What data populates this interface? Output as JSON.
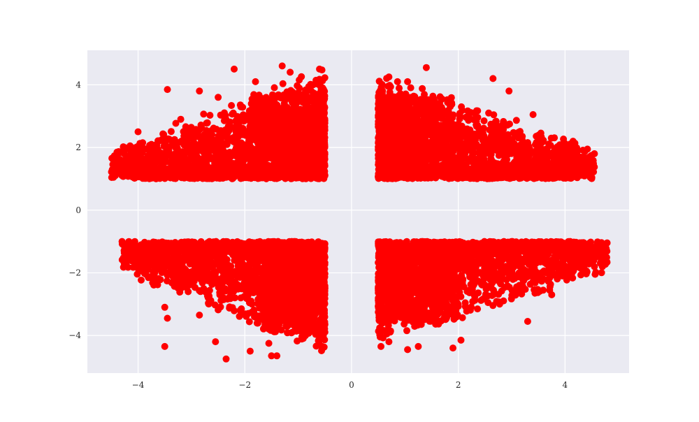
{
  "chart_data": {
    "type": "scatter",
    "title": "",
    "xlabel": "",
    "ylabel": "",
    "xlim": [
      -4.95,
      5.2
    ],
    "ylim": [
      -5.2,
      5.1
    ],
    "x_ticks": [
      -4,
      -2,
      0,
      2,
      4
    ],
    "y_ticks": [
      -4,
      -2,
      0,
      2,
      4
    ],
    "x_tick_labels": [
      "−4",
      "−2",
      "0",
      "2",
      "4"
    ],
    "y_tick_labels": [
      "−4",
      "−2",
      "0",
      "2",
      "4"
    ],
    "grid": true,
    "background_color": "#eaeaf2",
    "grid_color": "#ffffff",
    "point_color": "#ff0000",
    "quadrants": [
      {
        "name": "upper-left",
        "x_range": [
          -4.5,
          -0.5
        ],
        "y_range": [
          1.0,
          4.6
        ],
        "outer_edge": "left"
      },
      {
        "name": "upper-right",
        "x_range": [
          0.5,
          4.55
        ],
        "y_range": [
          1.0,
          4.5
        ],
        "outer_edge": "right"
      },
      {
        "name": "lower-left",
        "x_range": [
          -4.3,
          -0.5
        ],
        "y_range": [
          -4.75,
          -1.0
        ],
        "outer_edge": "left"
      },
      {
        "name": "lower-right",
        "x_range": [
          0.5,
          4.8
        ],
        "y_range": [
          -4.4,
          -1.0
        ],
        "outer_edge": "right"
      }
    ],
    "outliers": [
      [
        -4.46,
        1.05
      ],
      [
        -4.3,
        1.1
      ],
      [
        -4.15,
        2.05
      ],
      [
        -4.0,
        2.5
      ],
      [
        -3.9,
        1.6
      ],
      [
        -3.75,
        2.1
      ],
      [
        -3.45,
        3.85
      ],
      [
        -3.2,
        2.9
      ],
      [
        -2.85,
        3.8
      ],
      [
        -2.5,
        3.6
      ],
      [
        -2.2,
        4.5
      ],
      [
        -1.8,
        4.1
      ],
      [
        -1.3,
        4.6
      ],
      [
        -1.15,
        4.4
      ],
      [
        -0.6,
        4.5
      ],
      [
        1.4,
        4.55
      ],
      [
        0.7,
        4.25
      ],
      [
        1.05,
        4.1
      ],
      [
        2.65,
        4.2
      ],
      [
        2.95,
        3.8
      ],
      [
        3.4,
        3.05
      ],
      [
        4.15,
        2.2
      ],
      [
        4.05,
        1.05
      ],
      [
        4.55,
        1.8
      ],
      [
        3.85,
        1.4
      ],
      [
        -4.3,
        -1.0
      ],
      [
        -4.15,
        -1.2
      ],
      [
        -4.05,
        -1.55
      ],
      [
        -3.85,
        -2.05
      ],
      [
        -3.7,
        -2.3
      ],
      [
        -3.5,
        -3.1
      ],
      [
        -3.45,
        -3.45
      ],
      [
        -3.5,
        -4.35
      ],
      [
        -2.85,
        -3.35
      ],
      [
        -2.55,
        -4.2
      ],
      [
        -2.35,
        -4.75
      ],
      [
        -1.9,
        -4.5
      ],
      [
        -1.5,
        -4.65
      ],
      [
        -1.4,
        -4.65
      ],
      [
        -1.55,
        -4.25
      ],
      [
        -0.55,
        -4.35
      ],
      [
        0.55,
        -4.35
      ],
      [
        0.7,
        -4.2
      ],
      [
        1.05,
        -4.45
      ],
      [
        1.25,
        -4.35
      ],
      [
        1.9,
        -4.4
      ],
      [
        2.05,
        -4.15
      ],
      [
        3.3,
        -3.55
      ],
      [
        3.75,
        -2.7
      ],
      [
        3.95,
        -2.1
      ],
      [
        4.3,
        -1.7
      ],
      [
        4.55,
        -1.25
      ],
      [
        4.75,
        -1.25
      ],
      [
        4.2,
        -1.3
      ],
      [
        4.05,
        -1.15
      ]
    ]
  }
}
